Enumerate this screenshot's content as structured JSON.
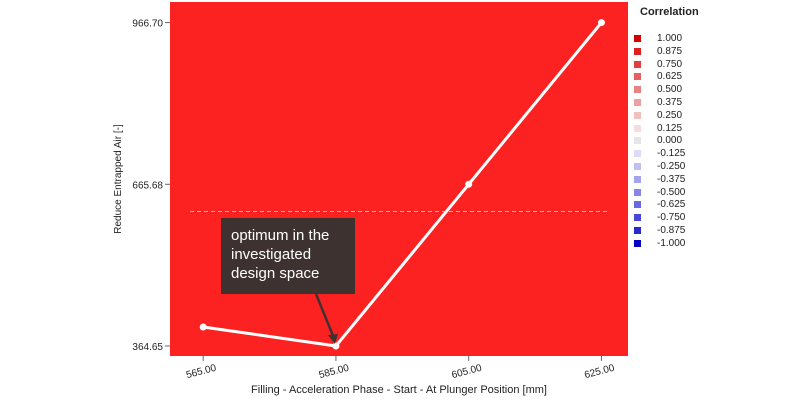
{
  "chart_data": {
    "type": "line",
    "xlabel": "Filling - Acceleration Phase - Start - At Plunger Position [mm]",
    "ylabel": "Reduce Entrapped Air [-]",
    "x_ticks": [
      "565.00",
      "585.00",
      "605.00",
      "625.00"
    ],
    "y_ticks": [
      "364.65",
      "665.68",
      "966.70"
    ],
    "xlim": [
      560,
      629
    ],
    "ylim": [
      346,
      1005
    ],
    "series": [
      {
        "x": [
          565,
          585,
          605,
          625
        ],
        "y": [
          400,
          364.65,
          665.68,
          966.7
        ]
      }
    ],
    "reference_line_y": 615,
    "background_color": "#fd2222",
    "line_color": "#ffffff",
    "annotation": {
      "text": "optimum in the investigated design space",
      "target": {
        "x": 585,
        "y": 364.65
      }
    },
    "legend": {
      "title": "Correlation",
      "position": "right",
      "entries": [
        {
          "label": "1.000",
          "color": "#d40000"
        },
        {
          "label": "0.875",
          "color": "#dc2020"
        },
        {
          "label": "0.750",
          "color": "#e24040"
        },
        {
          "label": "0.625",
          "color": "#e66060"
        },
        {
          "label": "0.500",
          "color": "#ea8282"
        },
        {
          "label": "0.375",
          "color": "#eea0a0"
        },
        {
          "label": "0.250",
          "color": "#f3c0c0"
        },
        {
          "label": "0.125",
          "color": "#f6dcdc"
        },
        {
          "label": "0.000",
          "color": "#e6e6e6"
        },
        {
          "label": "-0.125",
          "color": "#dcdcf6"
        },
        {
          "label": "-0.250",
          "color": "#c0c0f0"
        },
        {
          "label": "-0.375",
          "color": "#a4a4ec"
        },
        {
          "label": "-0.500",
          "color": "#8686e6"
        },
        {
          "label": "-0.625",
          "color": "#6868e0"
        },
        {
          "label": "-0.750",
          "color": "#4848d8"
        },
        {
          "label": "-0.875",
          "color": "#2828d0"
        },
        {
          "label": "-1.000",
          "color": "#0000c4"
        }
      ]
    }
  }
}
